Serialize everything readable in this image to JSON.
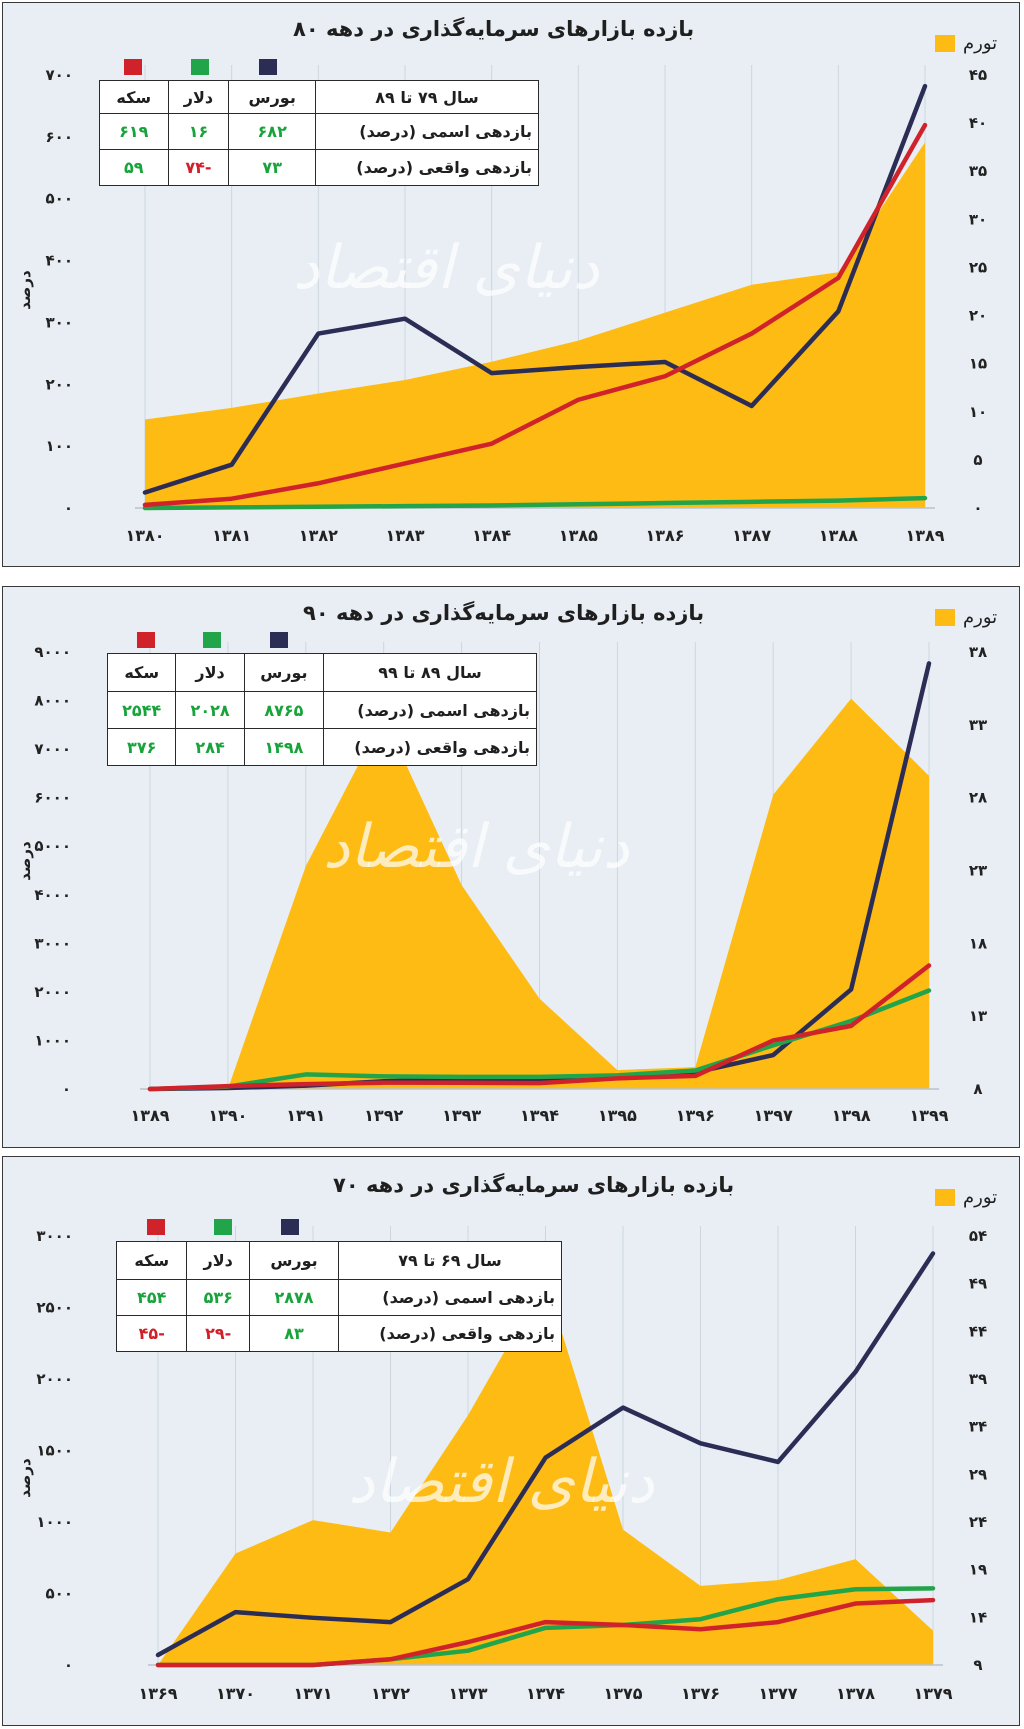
{
  "colors": {
    "inflation": "#fdbb14",
    "bourse": "#2b2d55",
    "dollar": "#22a44a",
    "coin": "#d0222b",
    "grid": "#cdd6df"
  },
  "watermark": "دنیای اقتصاد",
  "chart_data": [
    {
      "type": "line",
      "title": "بازده بازارهای سرمایه‌گذاری در دهه ۸۰",
      "inflation_label": "تورم",
      "ylabel": "درصد",
      "categories": [
        "۱۳۸۰",
        "۱۳۸۱",
        "۱۳۸۲",
        "۱۳۸۳",
        "۱۳۸۴",
        "۱۳۸۵",
        "۱۳۸۶",
        "۱۳۸۷",
        "۱۳۸۸",
        "۱۳۸۹"
      ],
      "left_ticks": [
        "۰",
        "۱۰۰",
        "۲۰۰",
        "۳۰۰",
        "۴۰۰",
        "۵۰۰",
        "۶۰۰",
        "۷۰۰"
      ],
      "right_ticks": [
        "۰",
        "۵",
        "۱۰",
        "۱۵",
        "۲۰",
        "۲۵",
        "۳۰",
        "۳۵",
        "۴۰",
        "۴۵"
      ],
      "ylim_left": [
        0,
        700
      ],
      "ylim_right": [
        0,
        45
      ],
      "inflation": [
        9.2,
        10.4,
        11.9,
        13.3,
        15.2,
        17.4,
        20.3,
        23.2,
        24.5,
        38.0
      ],
      "series": [
        {
          "name": "بورس",
          "key": "bourse",
          "values": [
            25,
            70,
            282,
            306,
            218,
            228,
            236,
            165,
            318,
            682
          ]
        },
        {
          "name": "دلار",
          "key": "dollar",
          "values": [
            0,
            1,
            2,
            3,
            4,
            6,
            8,
            10,
            12,
            16
          ]
        },
        {
          "name": "سکه",
          "key": "coin",
          "values": [
            5,
            15,
            40,
            72,
            104,
            175,
            213,
            282,
            372,
            619
          ]
        }
      ],
      "table": {
        "headers": [
          "سال ۷۹ تا ۸۹",
          "بورس",
          "دلار",
          "سکه"
        ],
        "rows": [
          {
            "label": "بازدهی اسمی (درصد)",
            "values": [
              "۶۸۲",
              "۱۶",
              "۶۱۹"
            ],
            "colors": [
              "g",
              "g",
              "g"
            ]
          },
          {
            "label": "بازدهی واقعی (درصد)",
            "values": [
              "۷۳",
              "-۷۴",
              "۵۹"
            ],
            "colors": [
              "g",
              "r",
              "g"
            ]
          }
        ]
      }
    },
    {
      "type": "line",
      "title": "بازده بازارهای سرمایه‌گذاری در دهه ۹۰",
      "inflation_label": "تورم",
      "ylabel": "درصد",
      "categories": [
        "۱۳۸۹",
        "۱۳۹۰",
        "۱۳۹۱",
        "۱۳۹۲",
        "۱۳۹۳",
        "۱۳۹۴",
        "۱۳۹۵",
        "۱۳۹۶",
        "۱۳۹۷",
        "۱۳۹۸",
        "۱۳۹۹"
      ],
      "left_ticks": [
        "۰",
        "۱۰۰۰",
        "۲۰۰۰",
        "۳۰۰۰",
        "۴۰۰۰",
        "۵۰۰۰",
        "۶۰۰۰",
        "۷۰۰۰",
        "۸۰۰۰",
        "۹۰۰۰"
      ],
      "right_ticks": [
        "۸",
        "۱۳",
        "۱۸",
        "۲۳",
        "۲۸",
        "۳۳",
        "۳۸"
      ],
      "ylim_left": [
        0,
        9000
      ],
      "ylim_right": [
        8,
        38
      ],
      "inflation": [
        8.0,
        8.0,
        23.3,
        33.6,
        22.0,
        14.2,
        9.3,
        9.5,
        28.2,
        34.8,
        29.5
      ],
      "series": [
        {
          "name": "بورس",
          "key": "bourse",
          "values": [
            0,
            20,
            70,
            160,
            200,
            200,
            240,
            340,
            700,
            2050,
            8765
          ]
        },
        {
          "name": "دلار",
          "key": "dollar",
          "values": [
            0,
            50,
            300,
            260,
            250,
            250,
            280,
            380,
            900,
            1400,
            2028
          ]
        },
        {
          "name": "سکه",
          "key": "coin",
          "values": [
            0,
            60,
            100,
            130,
            130,
            120,
            220,
            270,
            1000,
            1300,
            2544
          ]
        }
      ],
      "table": {
        "headers": [
          "سال ۸۹ تا ۹۹",
          "بورس",
          "دلار",
          "سکه"
        ],
        "rows": [
          {
            "label": "بازدهی اسمی (درصد)",
            "values": [
              "۸۷۶۵",
              "۲۰۲۸",
              "۲۵۴۴"
            ],
            "colors": [
              "g",
              "g",
              "g"
            ]
          },
          {
            "label": "بازدهی واقعی (درصد)",
            "values": [
              "۱۴۹۸",
              "۲۸۴",
              "۳۷۶"
            ],
            "colors": [
              "g",
              "g",
              "g"
            ]
          }
        ]
      }
    },
    {
      "type": "line",
      "title": "بازده بازارهای سرمایه‌گذاری در دهه ۷۰",
      "inflation_label": "تورم",
      "ylabel": "درصد",
      "categories": [
        "۱۳۶۹",
        "۱۳۷۰",
        "۱۳۷۱",
        "۱۳۷۲",
        "۱۳۷۳",
        "۱۳۷۴",
        "۱۳۷۵",
        "۱۳۷۶",
        "۱۳۷۷",
        "۱۳۷۸",
        "۱۳۷۹"
      ],
      "left_ticks": [
        "۰",
        "۵۰۰",
        "۱۰۰۰",
        "۱۵۰۰",
        "۲۰۰۰",
        "۲۵۰۰",
        "۳۰۰۰"
      ],
      "right_ticks": [
        "۹",
        "۱۴",
        "۱۹",
        "۲۴",
        "۲۹",
        "۳۴",
        "۳۹",
        "۴۴",
        "۴۹",
        "۵۴"
      ],
      "ylim_left": [
        0,
        3000
      ],
      "ylim_right": [
        9,
        54
      ],
      "inflation": [
        9.0,
        20.7,
        24.2,
        22.9,
        35.2,
        49.4,
        23.2,
        17.3,
        17.9,
        20.1,
        12.6
      ],
      "series": [
        {
          "name": "بورس",
          "key": "bourse",
          "values": [
            70,
            370,
            330,
            300,
            600,
            1450,
            1800,
            1550,
            1420,
            2050,
            2878
          ]
        },
        {
          "name": "دلار",
          "key": "dollar",
          "values": [
            0,
            0,
            0,
            40,
            100,
            260,
            280,
            320,
            460,
            530,
            536
          ]
        },
        {
          "name": "سکه",
          "key": "coin",
          "values": [
            0,
            0,
            0,
            40,
            160,
            300,
            280,
            250,
            300,
            430,
            454
          ]
        }
      ],
      "table": {
        "headers": [
          "سال ۶۹ تا ۷۹",
          "بورس",
          "دلار",
          "سکه"
        ],
        "rows": [
          {
            "label": "بازدهی اسمی (درصد)",
            "values": [
              "۲۸۷۸",
              "۵۳۶",
              "۴۵۴"
            ],
            "colors": [
              "g",
              "g",
              "g"
            ]
          },
          {
            "label": "بازدهی واقعی (درصد)",
            "values": [
              "۸۳",
              "-۲۹",
              "-۴۵"
            ],
            "colors": [
              "g",
              "r",
              "r"
            ]
          }
        ]
      }
    }
  ]
}
